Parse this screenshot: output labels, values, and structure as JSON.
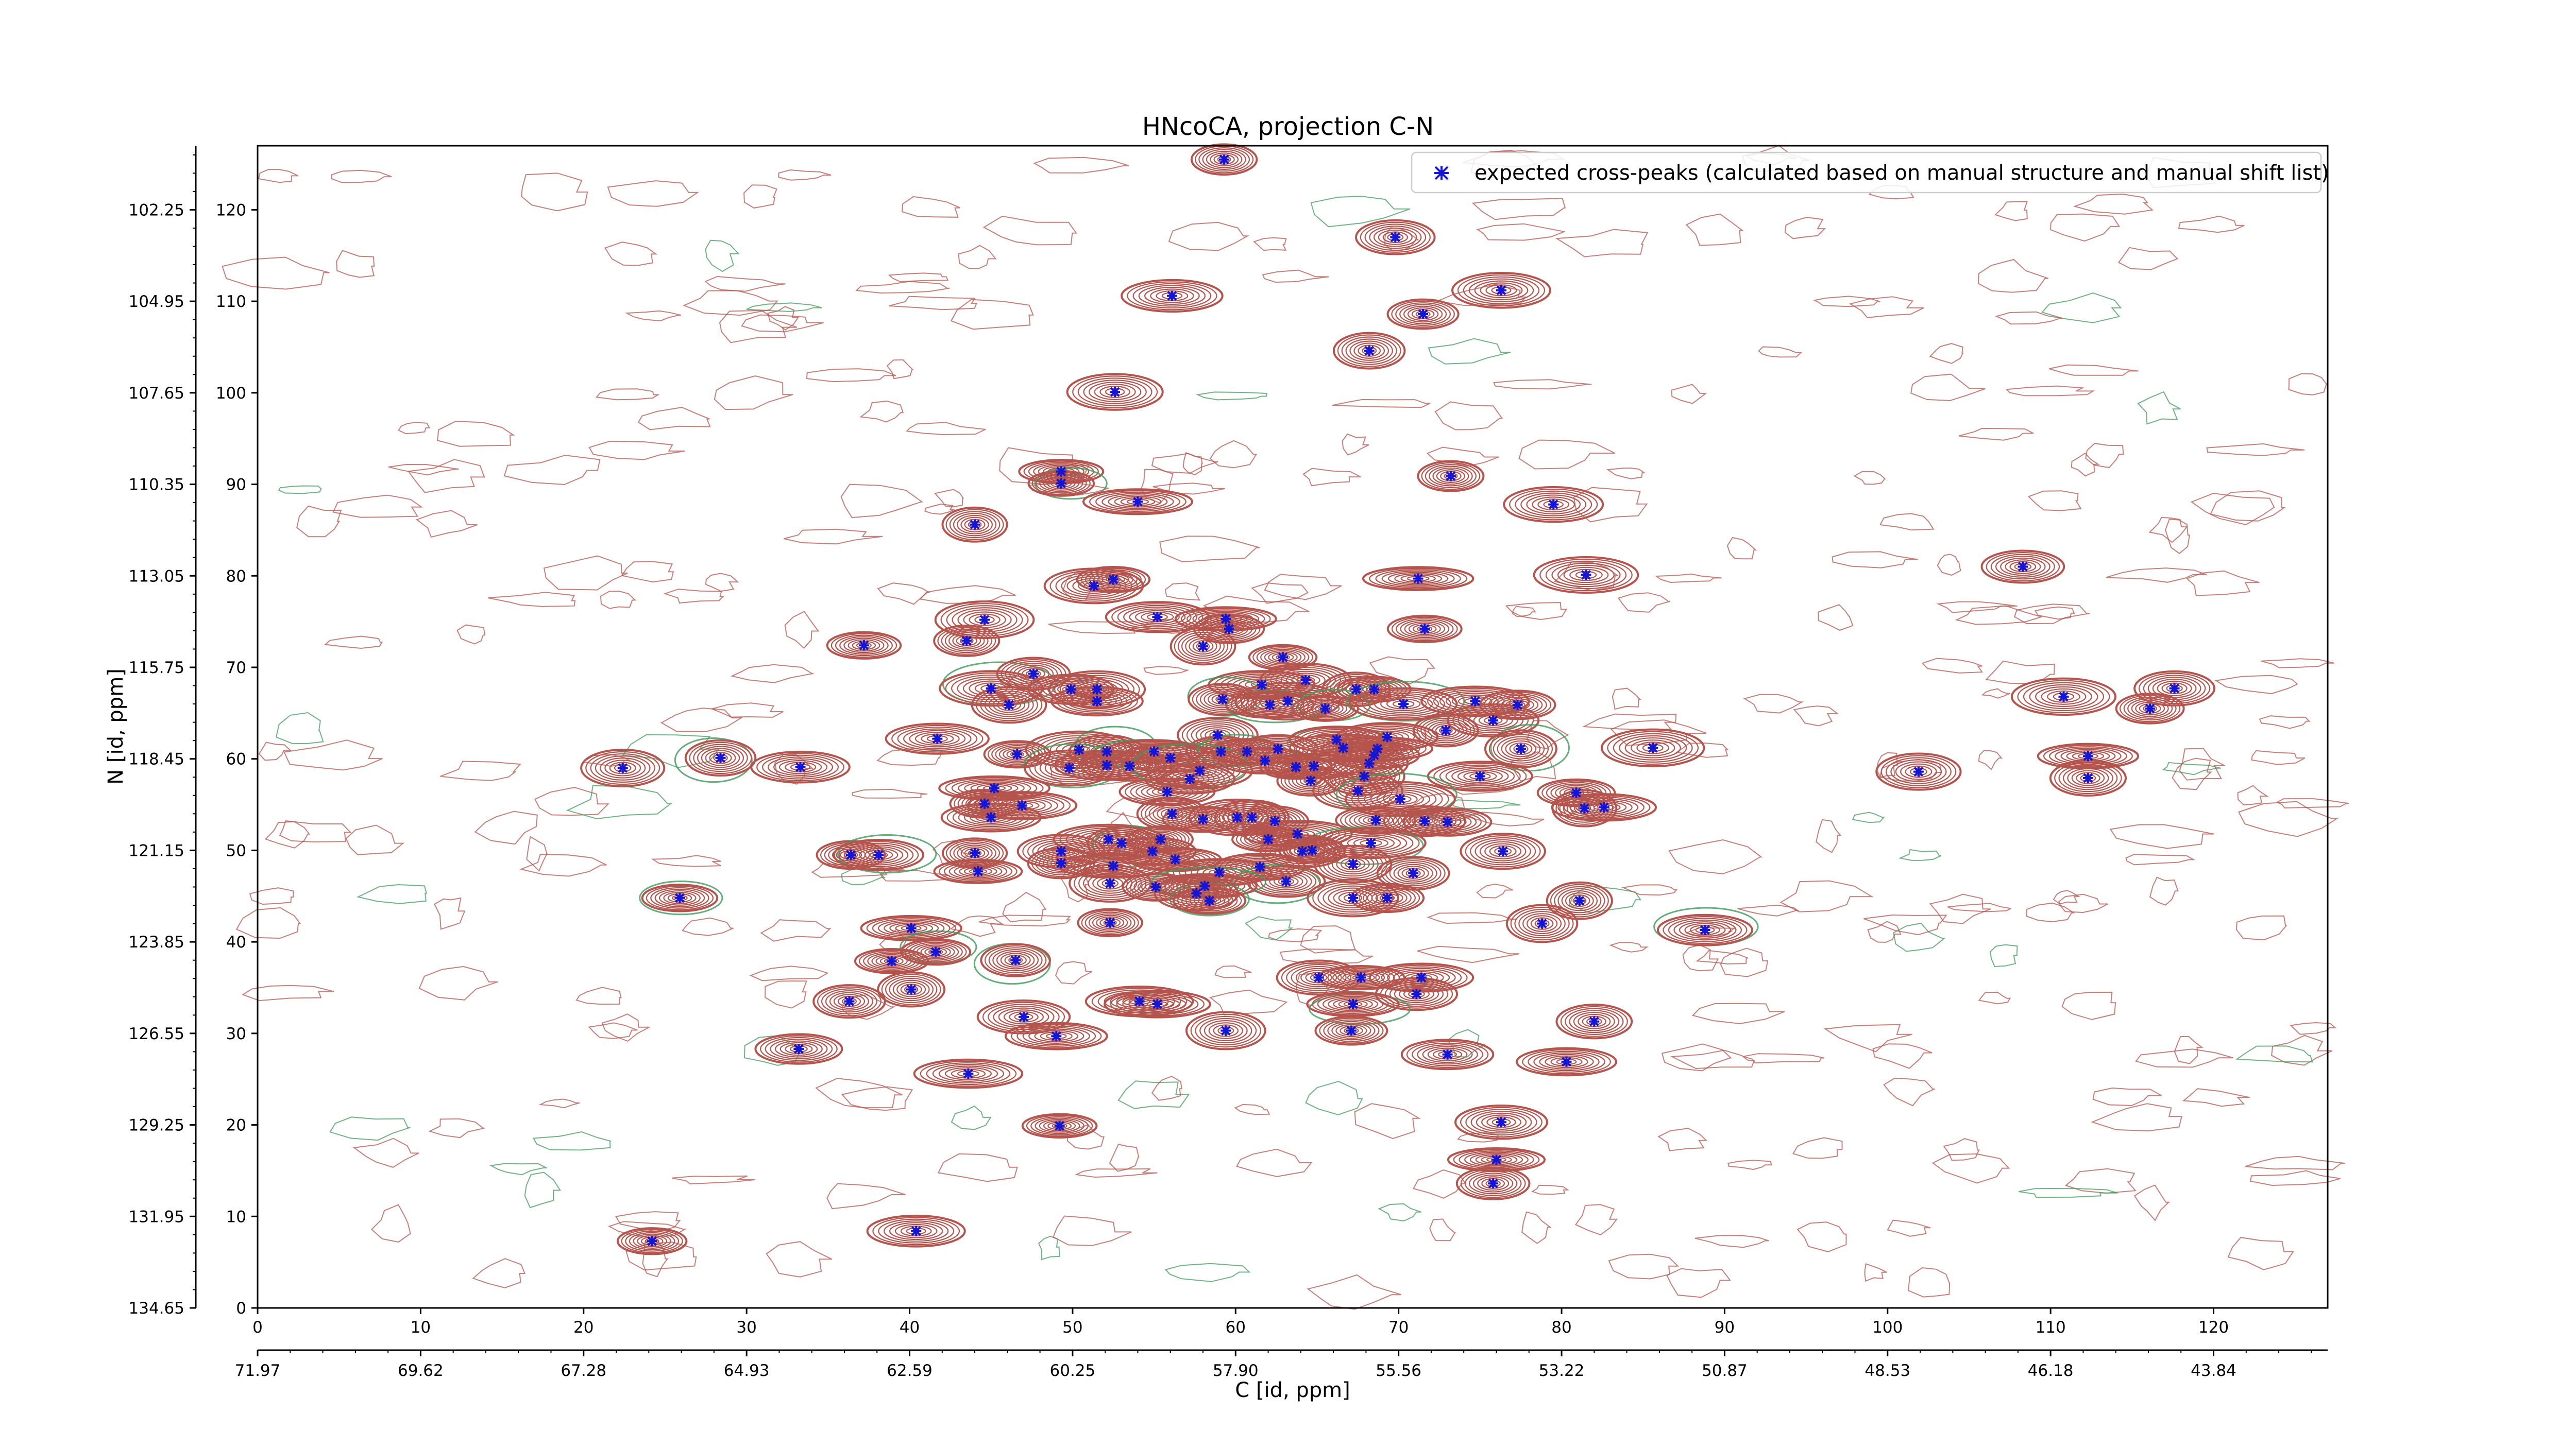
{
  "chart_data": {
    "type": "scatter",
    "title": "HNcoCA, projection C-N",
    "xlabel": "C [id, ppm]",
    "ylabel": "N [id, ppm]",
    "x_index_range": [
      0,
      127
    ],
    "y_index_range": [
      0,
      127
    ],
    "x_index_ticks": [
      0,
      10,
      20,
      30,
      40,
      50,
      60,
      70,
      80,
      90,
      100,
      110,
      120
    ],
    "y_index_ticks": [
      0,
      10,
      20,
      30,
      40,
      50,
      60,
      70,
      80,
      90,
      100,
      110,
      120
    ],
    "x_ppm_tick_labels": [
      "71.97",
      "69.62",
      "67.28",
      "64.93",
      "62.59",
      "60.25",
      "57.90",
      "55.56",
      "53.22",
      "50.87",
      "48.53",
      "46.18",
      "43.84"
    ],
    "y_ppm_tick_labels": [
      "134.65",
      "131.95",
      "129.25",
      "126.55",
      "123.85",
      "121.15",
      "118.45",
      "115.75",
      "113.05",
      "110.35",
      "107.65",
      "104.95",
      "102.25"
    ],
    "legend": {
      "label": "expected cross-peaks (calculated based on manual structure and manual shift list)",
      "position": "upper right"
    },
    "colors": {
      "contour_positive": "#b5544d",
      "contour_negative": "#3f9a5a",
      "marker": "#1515d6"
    },
    "series": [
      {
        "name": "expected cross-peaks (calculated based on manual structure and manual shift list)",
        "type": "scatter",
        "points": [
          [
            59.3,
            125.5
          ],
          [
            69.8,
            117
          ],
          [
            76.3,
            111.2
          ],
          [
            56.1,
            110.6
          ],
          [
            71.5,
            108.6
          ],
          [
            68.2,
            104.6
          ],
          [
            52.6,
            100.1
          ],
          [
            49.3,
            91.4
          ],
          [
            49.3,
            90.1
          ],
          [
            54,
            88.1
          ],
          [
            73.2,
            90.9
          ],
          [
            79.5,
            87.8
          ],
          [
            44,
            85.6
          ],
          [
            51.3,
            78.9
          ],
          [
            52.5,
            79.6
          ],
          [
            71.2,
            79.7
          ],
          [
            81.5,
            80.1
          ],
          [
            108.3,
            81.0
          ],
          [
            44.6,
            75.2
          ],
          [
            55.2,
            75.5
          ],
          [
            59.4,
            75.3
          ],
          [
            59.6,
            74.2
          ],
          [
            37.2,
            72.4
          ],
          [
            43.5,
            72.9
          ],
          [
            58,
            72.3
          ],
          [
            62.9,
            71.1
          ],
          [
            71.6,
            74.2
          ],
          [
            45,
            67.7
          ],
          [
            47.6,
            69.3
          ],
          [
            49.9,
            67.6
          ],
          [
            51.5,
            67.6
          ],
          [
            61.6,
            68.1
          ],
          [
            64.3,
            68.6
          ],
          [
            67.4,
            67.6
          ],
          [
            68.5,
            67.6
          ],
          [
            46.1,
            65.9
          ],
          [
            51.5,
            66.3
          ],
          [
            59.2,
            66.5
          ],
          [
            62.1,
            65.9
          ],
          [
            63.2,
            66.3
          ],
          [
            65.5,
            65.5
          ],
          [
            70.3,
            66
          ],
          [
            74.7,
            66.3
          ],
          [
            77.3,
            65.9
          ],
          [
            75.8,
            64.2
          ],
          [
            116.1,
            65.5
          ],
          [
            110.8,
            66.8
          ],
          [
            117.6,
            67.7
          ],
          [
            41.7,
            62.2
          ],
          [
            58.9,
            62.6
          ],
          [
            66.2,
            62.1
          ],
          [
            69.3,
            62.4
          ],
          [
            72.9,
            63.1
          ],
          [
            85.6,
            61.2
          ],
          [
            46.6,
            60.5
          ],
          [
            50.4,
            61
          ],
          [
            52.1,
            60.8
          ],
          [
            55,
            60.8
          ],
          [
            56,
            60.1
          ],
          [
            59.1,
            60.8
          ],
          [
            60.7,
            60.8
          ],
          [
            62.6,
            61.1
          ],
          [
            66.6,
            61.2
          ],
          [
            68.7,
            61.1
          ],
          [
            68.5,
            60.4
          ],
          [
            77.5,
            61.1
          ],
          [
            49.8,
            59
          ],
          [
            52.1,
            59.3
          ],
          [
            53.5,
            59.2
          ],
          [
            57.8,
            58.7
          ],
          [
            61.8,
            59.8
          ],
          [
            63.7,
            59.1
          ],
          [
            64.8,
            59.2
          ],
          [
            68.2,
            59.5
          ],
          [
            67.9,
            58.1
          ],
          [
            75,
            58.1
          ],
          [
            22.4,
            59
          ],
          [
            28.4,
            60.1
          ],
          [
            33.3,
            59.1
          ],
          [
            101.9,
            58.6
          ],
          [
            112.3,
            60.3
          ],
          [
            112.3,
            57.9
          ],
          [
            45.2,
            56.8
          ],
          [
            55.8,
            56.4
          ],
          [
            57.2,
            57.8
          ],
          [
            64.6,
            57.6
          ],
          [
            67.5,
            56.5
          ],
          [
            80.9,
            56.3
          ],
          [
            70.1,
            55.6
          ],
          [
            81.4,
            54.6
          ],
          [
            82.6,
            54.7
          ],
          [
            44.6,
            55.1
          ],
          [
            46.9,
            54.9
          ],
          [
            45,
            53.6
          ],
          [
            56.1,
            54
          ],
          [
            58,
            53.4
          ],
          [
            60.1,
            53.6
          ],
          [
            61,
            53.6
          ],
          [
            62.4,
            53.2
          ],
          [
            68.6,
            53.3
          ],
          [
            71.6,
            53.2
          ],
          [
            73,
            53.1
          ],
          [
            52.2,
            51.2
          ],
          [
            53,
            50.8
          ],
          [
            55.4,
            51.2
          ],
          [
            62,
            51.2
          ],
          [
            63.8,
            51.8
          ],
          [
            68.3,
            50.8
          ],
          [
            49.3,
            49.9
          ],
          [
            54.9,
            49.9
          ],
          [
            64.1,
            49.9
          ],
          [
            64.7,
            50
          ],
          [
            76.4,
            49.9
          ],
          [
            36.4,
            49.5
          ],
          [
            38.1,
            49.5
          ],
          [
            44,
            49.7
          ],
          [
            49.3,
            48.6
          ],
          [
            56.3,
            49
          ],
          [
            67.2,
            48.5
          ],
          [
            44.2,
            47.7
          ],
          [
            52.5,
            48.3
          ],
          [
            59,
            47.6
          ],
          [
            61.5,
            48.2
          ],
          [
            70.9,
            47.5
          ],
          [
            52.3,
            46.4
          ],
          [
            63.1,
            46.6
          ],
          [
            55.1,
            46
          ],
          [
            58.1,
            46.1
          ],
          [
            58.4,
            44.5
          ],
          [
            57.6,
            45.3
          ],
          [
            67.2,
            44.8
          ],
          [
            69.3,
            44.8
          ],
          [
            81.1,
            44.5
          ],
          [
            25.9,
            44.8
          ],
          [
            52.3,
            42.1
          ],
          [
            78.8,
            42
          ],
          [
            88.8,
            41.3
          ],
          [
            40.1,
            41.5
          ],
          [
            41.6,
            38.9
          ],
          [
            46.5,
            38
          ],
          [
            38.9,
            37.9
          ],
          [
            65.1,
            36.1
          ],
          [
            67.7,
            36.1
          ],
          [
            71.4,
            36.1
          ],
          [
            40.1,
            34.8
          ],
          [
            71.1,
            34.3
          ],
          [
            36.3,
            33.5
          ],
          [
            54.1,
            33.5
          ],
          [
            55.2,
            33.2
          ],
          [
            67.2,
            33.2
          ],
          [
            47,
            31.8
          ],
          [
            82,
            31.3
          ],
          [
            49,
            29.7
          ],
          [
            59.4,
            30.3
          ],
          [
            67.1,
            30.3
          ],
          [
            33.2,
            28.3
          ],
          [
            73,
            27.7
          ],
          [
            80.3,
            26.9
          ],
          [
            43.6,
            25.6
          ],
          [
            49.2,
            19.9
          ],
          [
            76.3,
            20.3
          ],
          [
            76,
            16.2
          ],
          [
            75.8,
            13.6
          ],
          [
            40.4,
            8.4
          ],
          [
            24.2,
            7.3
          ]
        ]
      }
    ]
  }
}
